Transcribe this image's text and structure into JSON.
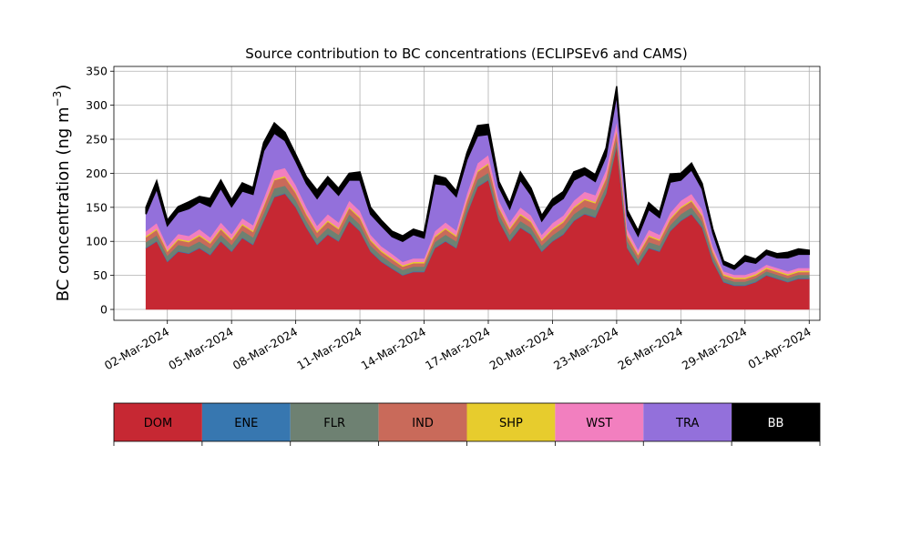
{
  "chart_data": {
    "type": "area",
    "stacked": true,
    "title": "Source contribution to BC concentrations (ECLIPSEv6 and CAMS)",
    "ylabel_main": "BC concentration (ng m",
    "ylabel_sup": "−3",
    "ylabel_close": ")",
    "ylim": [
      -16,
      357
    ],
    "yticks": [
      0,
      50,
      100,
      150,
      200,
      250,
      300,
      350
    ],
    "xlim": [
      "2024-02-28T12:00",
      "2024-04-01T12:00"
    ],
    "xticks": [
      {
        "date": "2024-03-02",
        "label": "02-Mar-2024"
      },
      {
        "date": "2024-03-05",
        "label": "05-Mar-2024"
      },
      {
        "date": "2024-03-08",
        "label": "08-Mar-2024"
      },
      {
        "date": "2024-03-11",
        "label": "11-Mar-2024"
      },
      {
        "date": "2024-03-14",
        "label": "14-Mar-2024"
      },
      {
        "date": "2024-03-17",
        "label": "17-Mar-2024"
      },
      {
        "date": "2024-03-20",
        "label": "20-Mar-2024"
      },
      {
        "date": "2024-03-23",
        "label": "23-Mar-2024"
      },
      {
        "date": "2024-03-26",
        "label": "26-Mar-2024"
      },
      {
        "date": "2024-03-29",
        "label": "29-Mar-2024"
      },
      {
        "date": "2024-04-01",
        "label": "01-Apr-2024"
      }
    ],
    "grid": true,
    "legend_position": "bottom",
    "x": [
      "2024-03-01T00:00",
      "2024-03-01T12:00",
      "2024-03-02T00:00",
      "2024-03-02T12:00",
      "2024-03-03T00:00",
      "2024-03-03T12:00",
      "2024-03-04T00:00",
      "2024-03-04T12:00",
      "2024-03-05T00:00",
      "2024-03-05T12:00",
      "2024-03-06T00:00",
      "2024-03-06T12:00",
      "2024-03-07T00:00",
      "2024-03-07T12:00",
      "2024-03-08T00:00",
      "2024-03-08T12:00",
      "2024-03-09T00:00",
      "2024-03-09T12:00",
      "2024-03-10T00:00",
      "2024-03-10T12:00",
      "2024-03-11T00:00",
      "2024-03-11T12:00",
      "2024-03-12T00:00",
      "2024-03-12T12:00",
      "2024-03-13T00:00",
      "2024-03-13T12:00",
      "2024-03-14T00:00",
      "2024-03-14T12:00",
      "2024-03-15T00:00",
      "2024-03-15T12:00",
      "2024-03-16T00:00",
      "2024-03-16T12:00",
      "2024-03-17T00:00",
      "2024-03-17T12:00",
      "2024-03-18T00:00",
      "2024-03-18T12:00",
      "2024-03-19T00:00",
      "2024-03-19T12:00",
      "2024-03-20T00:00",
      "2024-03-20T12:00",
      "2024-03-21T00:00",
      "2024-03-21T12:00",
      "2024-03-22T00:00",
      "2024-03-22T12:00",
      "2024-03-23T00:00",
      "2024-03-23T12:00",
      "2024-03-24T00:00",
      "2024-03-24T12:00",
      "2024-03-25T00:00",
      "2024-03-25T12:00",
      "2024-03-26T00:00",
      "2024-03-26T12:00",
      "2024-03-27T00:00",
      "2024-03-27T12:00",
      "2024-03-28T00:00",
      "2024-03-28T12:00",
      "2024-03-29T00:00",
      "2024-03-29T12:00",
      "2024-03-30T00:00",
      "2024-03-30T12:00",
      "2024-03-31T00:00",
      "2024-03-31T12:00",
      "2024-04-01T00:00"
    ],
    "series": [
      {
        "name": "DOM",
        "color": "#c62833",
        "values": [
          90,
          100,
          70,
          85,
          82,
          90,
          80,
          100,
          85,
          105,
          95,
          130,
          165,
          170,
          150,
          120,
          95,
          110,
          100,
          130,
          115,
          85,
          70,
          60,
          50,
          55,
          55,
          90,
          100,
          90,
          140,
          180,
          190,
          130,
          100,
          120,
          110,
          85,
          100,
          110,
          130,
          140,
          135,
          170,
          240,
          90,
          65,
          90,
          85,
          115,
          130,
          140,
          120,
          70,
          40,
          35,
          35,
          40,
          50,
          45,
          40,
          45,
          45
        ]
      },
      {
        "name": "ENE",
        "color": "#3777b0",
        "values": [
          1,
          1,
          1,
          1,
          1,
          1,
          1,
          1,
          1,
          1,
          1,
          1,
          1,
          1,
          1,
          1,
          1,
          1,
          1,
          1,
          1,
          1,
          1,
          1,
          1,
          1,
          1,
          1,
          1,
          1,
          1,
          1,
          1,
          1,
          1,
          1,
          1,
          1,
          1,
          1,
          1,
          1,
          1,
          1,
          1,
          1,
          1,
          1,
          1,
          1,
          1,
          1,
          1,
          1,
          1,
          1,
          1,
          1,
          1,
          1,
          1,
          1,
          1
        ]
      },
      {
        "name": "FLR",
        "color": "#6e8172",
        "values": [
          8,
          8,
          8,
          9,
          9,
          9,
          9,
          9,
          9,
          10,
          10,
          10,
          12,
          11,
          10,
          9,
          9,
          9,
          9,
          9,
          9,
          8,
          8,
          7,
          7,
          7,
          7,
          8,
          9,
          9,
          9,
          10,
          10,
          9,
          9,
          9,
          9,
          8,
          8,
          9,
          9,
          10,
          10,
          10,
          9,
          9,
          8,
          8,
          8,
          8,
          9,
          9,
          8,
          7,
          5,
          5,
          5,
          5,
          5,
          5,
          5,
          5,
          5
        ]
      },
      {
        "name": "IND",
        "color": "#c96a5a",
        "values": [
          7,
          8,
          6,
          7,
          7,
          8,
          7,
          8,
          7,
          8,
          8,
          10,
          12,
          12,
          10,
          9,
          8,
          9,
          8,
          9,
          9,
          7,
          6,
          6,
          5,
          5,
          5,
          7,
          8,
          7,
          9,
          11,
          12,
          9,
          8,
          9,
          8,
          7,
          8,
          8,
          9,
          10,
          10,
          11,
          12,
          8,
          6,
          8,
          7,
          8,
          9,
          9,
          8,
          6,
          4,
          4,
          4,
          4,
          4,
          4,
          4,
          4,
          4
        ]
      },
      {
        "name": "SHP",
        "color": "#e7cc2d",
        "values": [
          2,
          2,
          2,
          2,
          2,
          2,
          2,
          2,
          2,
          2,
          2,
          2,
          2,
          2,
          2,
          2,
          2,
          2,
          2,
          2,
          2,
          2,
          2,
          2,
          2,
          2,
          2,
          2,
          2,
          2,
          2,
          2,
          2,
          2,
          2,
          2,
          2,
          2,
          2,
          2,
          2,
          2,
          2,
          2,
          2,
          2,
          2,
          2,
          2,
          2,
          2,
          2,
          2,
          2,
          2,
          2,
          2,
          2,
          2,
          2,
          2,
          2,
          2
        ]
      },
      {
        "name": "WST",
        "color": "#f27fbf",
        "values": [
          7,
          8,
          6,
          7,
          7,
          8,
          7,
          8,
          7,
          8,
          8,
          10,
          12,
          12,
          10,
          9,
          8,
          9,
          8,
          9,
          9,
          7,
          6,
          6,
          5,
          5,
          5,
          7,
          8,
          7,
          9,
          11,
          12,
          9,
          8,
          9,
          8,
          7,
          8,
          8,
          9,
          10,
          10,
          11,
          12,
          8,
          6,
          8,
          7,
          8,
          9,
          9,
          8,
          6,
          4,
          4,
          4,
          4,
          4,
          4,
          4,
          4,
          4
        ]
      },
      {
        "name": "TRA",
        "color": "#9370db",
        "values": [
          25,
          50,
          30,
          32,
          40,
          40,
          45,
          50,
          40,
          40,
          45,
          70,
          55,
          40,
          35,
          35,
          40,
          45,
          40,
          30,
          45,
          30,
          30,
          25,
          30,
          35,
          30,
          70,
          55,
          50,
          50,
          40,
          30,
          20,
          20,
          40,
          30,
          20,
          25,
          25,
          30,
          25,
          20,
          20,
          40,
          20,
          20,
          30,
          25,
          45,
          30,
          35,
          30,
          20,
          10,
          8,
          20,
          12,
          15,
          15,
          20,
          20,
          20
        ]
      },
      {
        "name": "BB",
        "color": "#000000",
        "values": [
          10,
          12,
          8,
          8,
          10,
          8,
          12,
          12,
          10,
          12,
          10,
          12,
          15,
          12,
          10,
          10,
          12,
          10,
          10,
          10,
          12,
          10,
          8,
          8,
          8,
          8,
          8,
          12,
          10,
          8,
          10,
          15,
          15,
          8,
          8,
          12,
          10,
          8,
          10,
          10,
          12,
          10,
          10,
          12,
          12,
          8,
          8,
          10,
          8,
          12,
          10,
          10,
          8,
          6,
          5,
          5,
          8,
          6,
          6,
          6,
          8,
          8,
          6
        ]
      }
    ]
  }
}
